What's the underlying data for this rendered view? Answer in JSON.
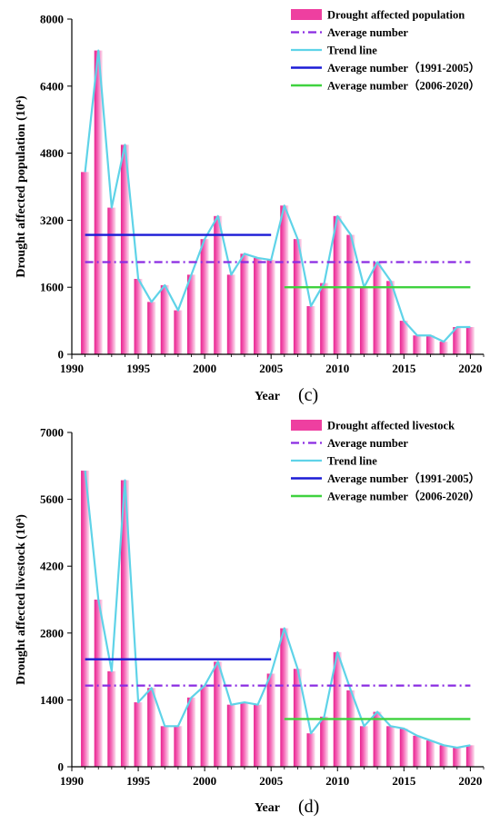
{
  "chart_data": [
    {
      "type": "bar",
      "panel_label": "(c)",
      "xlabel": "Year",
      "ylabel": "Drought affected population  (10⁴)",
      "x": [
        1991,
        1992,
        1993,
        1994,
        1995,
        1996,
        1997,
        1998,
        1999,
        2000,
        2001,
        2002,
        2003,
        2004,
        2005,
        2006,
        2007,
        2008,
        2009,
        2010,
        2011,
        2012,
        2013,
        2014,
        2015,
        2016,
        2017,
        2018,
        2019,
        2020
      ],
      "values": [
        4350,
        7250,
        3500,
        5000,
        1800,
        1250,
        1650,
        1050,
        1900,
        2750,
        3300,
        1900,
        2400,
        2300,
        2250,
        3550,
        2750,
        1150,
        1700,
        3300,
        2850,
        1600,
        2200,
        1750,
        800,
        450,
        450,
        300,
        650,
        650
      ],
      "xlim": [
        1990,
        2021
      ],
      "ylim": [
        0,
        8000
      ],
      "xticks": [
        1990,
        1995,
        2000,
        2005,
        2010,
        2015,
        2020
      ],
      "yticks": [
        0,
        1600,
        3200,
        4800,
        6400,
        8000
      ],
      "average_all": 2200,
      "average_1991_2005": {
        "x": [
          1991,
          2005
        ],
        "value": 2850
      },
      "average_2006_2020": {
        "x": [
          2006,
          2020
        ],
        "value": 1600
      },
      "legend": {
        "position": "top-right",
        "entries": [
          "Drought affected population",
          "Average number",
          "Trend line",
          "Average number（1991-2005）",
          "Average number（2006-2020）"
        ]
      },
      "colors": {
        "bar": "#ee3fa0",
        "average": "#8a2be2",
        "trend": "#5fd3e8",
        "avg_early": "#1b1bd6",
        "avg_late": "#3fd23f"
      }
    },
    {
      "type": "bar",
      "panel_label": "(d)",
      "xlabel": "Year",
      "ylabel": "Drought affected livestock  (10⁴)",
      "x": [
        1991,
        1992,
        1993,
        1994,
        1995,
        1996,
        1997,
        1998,
        1999,
        2000,
        2001,
        2002,
        2003,
        2004,
        2005,
        2006,
        2007,
        2008,
        2009,
        2010,
        2011,
        2012,
        2013,
        2014,
        2015,
        2016,
        2017,
        2018,
        2019,
        2020
      ],
      "values": [
        6200,
        3500,
        2000,
        6000,
        1350,
        1650,
        850,
        850,
        1450,
        1700,
        2200,
        1300,
        1350,
        1300,
        1950,
        2900,
        2050,
        700,
        1050,
        2400,
        1600,
        850,
        1150,
        850,
        800,
        650,
        550,
        450,
        400,
        450
      ],
      "xlim": [
        1990,
        2021
      ],
      "ylim": [
        0,
        7000
      ],
      "xticks": [
        1990,
        1995,
        2000,
        2005,
        2010,
        2015,
        2020
      ],
      "yticks": [
        0,
        1400,
        2800,
        4200,
        5600,
        7000
      ],
      "average_all": 1700,
      "average_1991_2005": {
        "x": [
          1991,
          2005
        ],
        "value": 2250
      },
      "average_2006_2020": {
        "x": [
          2006,
          2020
        ],
        "value": 1000
      },
      "legend": {
        "position": "top-right",
        "entries": [
          "Drought affected livestock",
          "Average number",
          "Trend line",
          "Average number（1991-2005）",
          "Average number（2006-2020）"
        ]
      },
      "colors": {
        "bar": "#ee3fa0",
        "average": "#8a2be2",
        "trend": "#5fd3e8",
        "avg_early": "#1b1bd6",
        "avg_late": "#3fd23f"
      }
    }
  ]
}
